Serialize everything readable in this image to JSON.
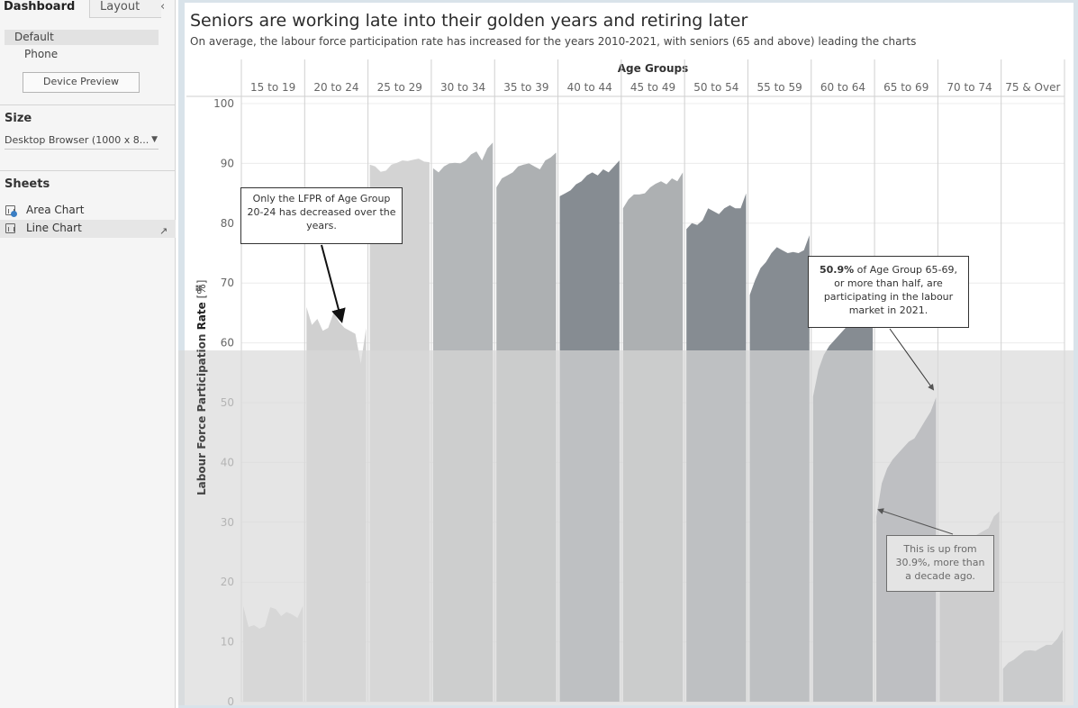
{
  "left_pane": {
    "tabs": {
      "dashboard": "Dashboard",
      "layout": "Layout",
      "collapse_icon": "chevron-left-icon"
    },
    "device": {
      "default": "Default",
      "phone": "Phone",
      "preview_button": "Device Preview"
    },
    "size": {
      "heading": "Size",
      "value": "Desktop Browser (1000 x 8..."
    },
    "sheets": {
      "heading": "Sheets",
      "items": [
        {
          "label": "Area Chart",
          "icon": "sheet-icon"
        },
        {
          "label": "Line Chart",
          "icon": "sheet-icon"
        }
      ]
    }
  },
  "dashboard": {
    "title": "Seniors are working late into their golden years and retiring later",
    "subtitle": "On average, the labour force participation rate has increased for the years 2010-2021, with seniors (65 and above) leading the charts"
  },
  "chart_data": {
    "type": "area",
    "header_label": "Age Groups",
    "ylabel_regular": "Labour Force Participation ",
    "ylabel_bold": "Rate",
    "ylabel_unit": " [%]",
    "ylim": [
      0,
      100
    ],
    "yticks": [
      0,
      10,
      20,
      30,
      40,
      50,
      60,
      70,
      80,
      90,
      100
    ],
    "grid": true,
    "colors": {
      "light": "#d4d4d4",
      "mid": "#b0b3b6",
      "dark": "#858b91",
      "highlight_overlay": "#d9d9d9"
    },
    "panels": [
      {
        "category": "15 to 19",
        "shade": "#d2d2d2",
        "values": [
          16,
          12.5,
          12.8,
          12.2,
          12.6,
          15.8,
          15.5,
          14.3,
          15.0,
          14.6,
          14.0,
          16.0
        ]
      },
      {
        "category": "20 to 24",
        "shade": "#d0d0d0",
        "values": [
          66,
          63,
          64,
          62,
          62.5,
          65,
          63.5,
          62.5,
          62,
          61.5,
          56.5,
          62.5
        ]
      },
      {
        "category": "25 to 29",
        "shade": "#d3d3d3",
        "values": [
          89.8,
          89.5,
          88.6,
          88.8,
          89.8,
          90.1,
          90.5,
          90.4,
          90.6,
          90.8,
          90.3,
          90.2
        ]
      },
      {
        "category": "30 to 34",
        "shade": "#b4b7b9",
        "values": [
          89.2,
          88.5,
          89.5,
          90.0,
          90.1,
          90.0,
          90.5,
          91.5,
          92.0,
          90.5,
          92.5,
          93.5
        ]
      },
      {
        "category": "35 to 39",
        "shade": "#adb0b2",
        "values": [
          86.0,
          87.5,
          88.0,
          88.5,
          89.5,
          89.8,
          90.0,
          89.5,
          89.0,
          90.5,
          91.0,
          91.8
        ]
      },
      {
        "category": "40 to 44",
        "shade": "#868c92",
        "values": [
          84.5,
          85.0,
          85.5,
          86.5,
          87.0,
          88.0,
          88.5,
          88.0,
          89.0,
          88.5,
          89.5,
          90.5
        ]
      },
      {
        "category": "45 to 49",
        "shade": "#adb0b2",
        "values": [
          82.5,
          84.0,
          84.8,
          84.8,
          85.0,
          86.0,
          86.6,
          87.0,
          86.5,
          87.5,
          87.0,
          88.5
        ]
      },
      {
        "category": "50 to 54",
        "shade": "#868c92",
        "values": [
          79.0,
          80.0,
          79.7,
          80.5,
          82.5,
          82.0,
          81.5,
          82.5,
          83.0,
          82.5,
          82.5,
          85.0
        ]
      },
      {
        "category": "55 to 59",
        "shade": "#868c92",
        "values": [
          68.0,
          70.5,
          72.5,
          73.5,
          75.0,
          76.0,
          75.5,
          75.0,
          75.2,
          75.0,
          75.5,
          78.0
        ]
      },
      {
        "category": "60 to 64",
        "shade": "#868c92",
        "values": [
          51.0,
          55.5,
          58.0,
          59.5,
          60.5,
          61.5,
          62.5,
          63.0,
          63.8,
          64.0,
          63.5,
          65.5
        ]
      },
      {
        "category": "65 to 69",
        "shade": "#868a91",
        "values": [
          30.9,
          36.5,
          39.0,
          40.5,
          41.5,
          42.5,
          43.5,
          44.0,
          45.5,
          47.0,
          48.5,
          50.9
        ]
      },
      {
        "category": "70 to 74",
        "shade": "#b3b5b7",
        "values": [
          21.0,
          23.0,
          24.5,
          25.5,
          26.5,
          27.0,
          27.5,
          28.0,
          28.5,
          29.0,
          31.0,
          31.8
        ]
      },
      {
        "category": "75 & Over",
        "shade": "#acafb1",
        "values": [
          5.5,
          6.5,
          7.0,
          7.8,
          8.5,
          8.6,
          8.5,
          9.0,
          9.5,
          9.5,
          10.5,
          12.0
        ]
      }
    ],
    "annotations": [
      {
        "text": "Only the LFPR of Age Group 20-24 has decreased over the years."
      },
      {
        "bold": "50.9%",
        "text": " of Age Group 65-69, or more than half, are participating in the labour market in 2021."
      },
      {
        "text": "This is up from 30.9%, more than a decade ago."
      }
    ]
  }
}
